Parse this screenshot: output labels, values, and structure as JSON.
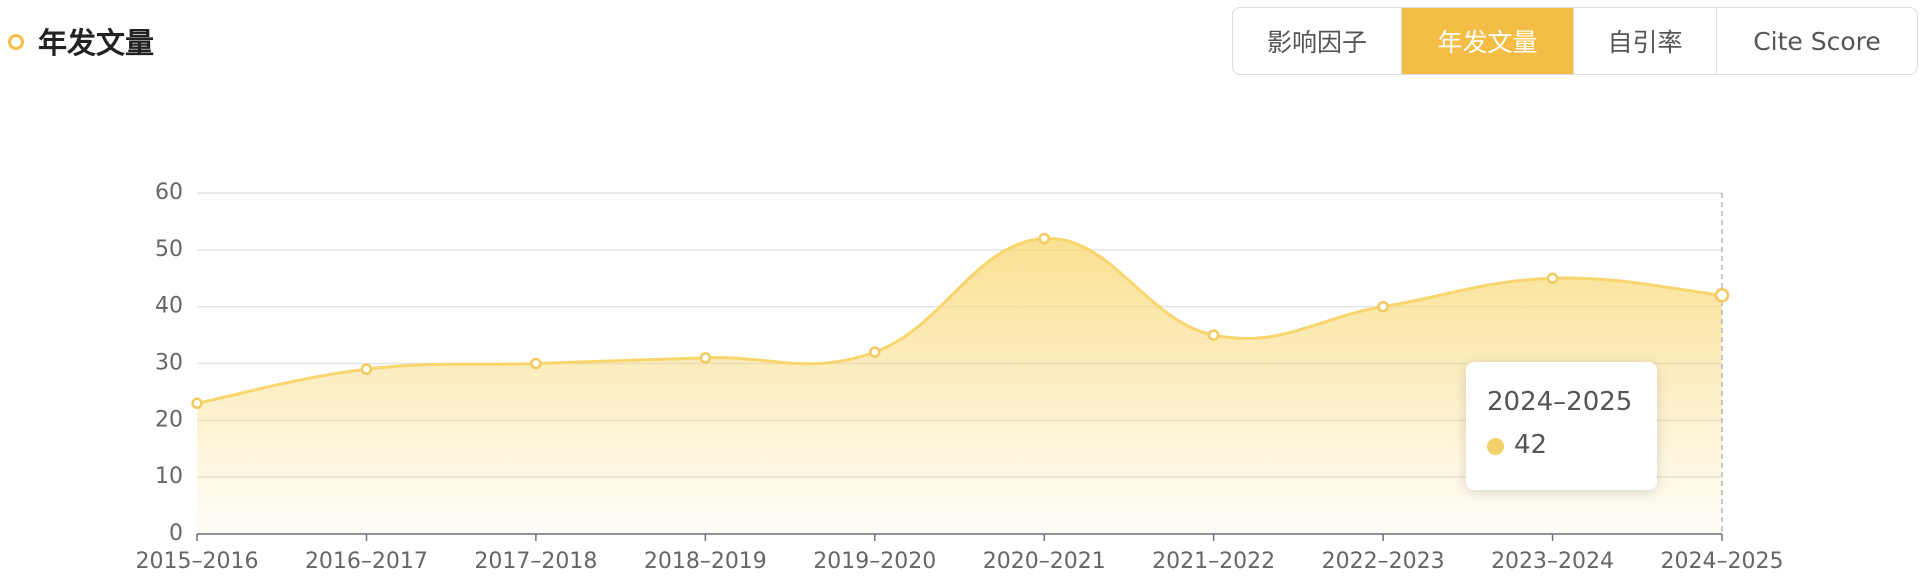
{
  "header": {
    "title": "年发文量",
    "tabs": [
      "影响因子",
      "年发文量",
      "自引率",
      "Cite Score"
    ]
  },
  "chart_data": {
    "type": "area",
    "categories": [
      "2015–2016",
      "2016–2017",
      "2017–2018",
      "2018–2019",
      "2019–2020",
      "2020–2021",
      "2021–2022",
      "2022–2023",
      "2023–2024",
      "2024–2025"
    ],
    "values": [
      23,
      29,
      30,
      31,
      32,
      52,
      35,
      40,
      45,
      42
    ],
    "color": "#f8d66d",
    "ylim": [
      0,
      60
    ],
    "yticks": [
      0,
      10,
      20,
      30,
      40,
      50,
      60
    ],
    "grid": true
  }
}
